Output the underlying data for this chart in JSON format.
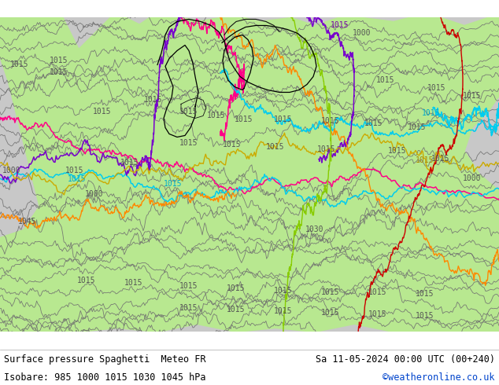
{
  "title_left": "Surface pressure Spaghetti  Meteo FR",
  "title_right": "Sa 11-05-2024 00:00 UTC (00+240)",
  "subtitle": "Isobare: 985 1000 1015 1030 1045 hPa",
  "credit": "©weatheronline.co.uk",
  "bg_sea": "#c8c8c8",
  "bg_land": "#b8e890",
  "bg_land2": "#c8f0a0",
  "border_color": "#000000",
  "border_lw": 0.7,
  "footer_bg": "#ffffff",
  "text_color": "#000000",
  "credit_color": "#0044cc",
  "gray_line_color": "#707070",
  "gray_line_lw": 0.6,
  "colored_lines": [
    {
      "color": "#ff00aa",
      "lw": 1.0
    },
    {
      "color": "#00ccff",
      "lw": 1.0
    },
    {
      "color": "#7700ff",
      "lw": 1.0
    },
    {
      "color": "#ffaa00",
      "lw": 1.0
    },
    {
      "color": "#aacc00",
      "lw": 1.0
    },
    {
      "color": "#ff0055",
      "lw": 1.0
    },
    {
      "color": "#00aaff",
      "lw": 1.0
    }
  ],
  "label_color_gray": "#555555",
  "label_color_cyan": "#00aacc",
  "label_color_yellow": "#aa8800",
  "label_color_purple": "#7700aa",
  "label_color_red": "#cc0000"
}
